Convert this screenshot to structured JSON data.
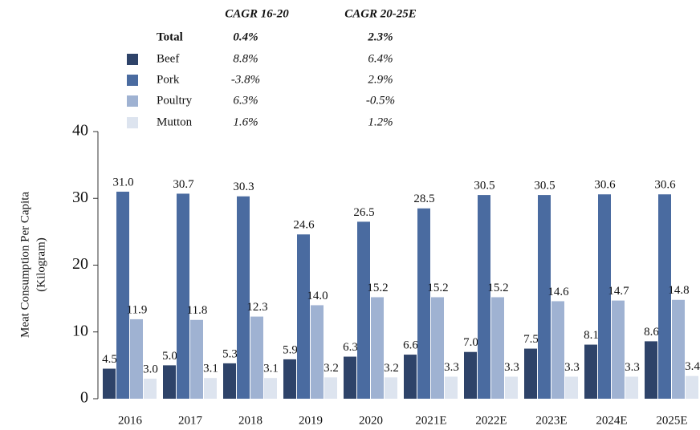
{
  "chart_data": {
    "type": "bar",
    "categories": [
      "2016",
      "2017",
      "2018",
      "2019",
      "2020",
      "2021E",
      "2022E",
      "2023E",
      "2024E",
      "2025E"
    ],
    "ylabel": [
      "Meat Consumption Per Capita",
      "(Kilogram)"
    ],
    "ylim": [
      0,
      40
    ],
    "yticks": [
      0,
      10,
      20,
      30,
      40
    ],
    "cagr_headers": [
      "CAGR 16-20",
      "CAGR 20-25E"
    ],
    "total": {
      "name": "Total",
      "cagr": [
        "0.4%",
        "2.3%"
      ]
    },
    "series": [
      {
        "name": "Beef",
        "color": "#2e4369",
        "cagr": [
          "8.8%",
          "6.4%"
        ],
        "values": [
          4.5,
          5.0,
          5.3,
          5.9,
          6.3,
          6.6,
          7.0,
          7.5,
          8.1,
          8.6
        ],
        "value_labels": [
          "4.5",
          "5.0",
          "5.3",
          "5.9",
          "6.3",
          "6.6",
          "7.0",
          "7.5",
          "8.1",
          "8.6"
        ]
      },
      {
        "name": "Pork",
        "color": "#4a6ba0",
        "cagr": [
          "-3.8%",
          "2.9%"
        ],
        "values": [
          31.0,
          30.7,
          30.3,
          24.6,
          26.5,
          28.5,
          30.5,
          30.5,
          30.6,
          30.6
        ],
        "value_labels": [
          "31.0",
          "30.7",
          "30.3",
          "24.6",
          "26.5",
          "28.5",
          "30.5",
          "30.5",
          "30.6",
          "30.6"
        ]
      },
      {
        "name": "Poultry",
        "color": "#9fb2d2",
        "cagr": [
          "6.3%",
          "-0.5%"
        ],
        "values": [
          11.9,
          11.8,
          12.3,
          14.0,
          15.2,
          15.2,
          15.2,
          14.6,
          14.7,
          14.8
        ],
        "value_labels": [
          "11.9",
          "11.8",
          "12.3",
          "14.0",
          "15.2",
          "15.2",
          "15.2",
          "14.6",
          "14.7",
          "14.8"
        ]
      },
      {
        "name": "Mutton",
        "color": "#dde4ef",
        "cagr": [
          "1.6%",
          "1.2%"
        ],
        "values": [
          3.0,
          3.1,
          3.1,
          3.2,
          3.2,
          3.3,
          3.3,
          3.3,
          3.3,
          3.4
        ],
        "value_labels": [
          "3.0",
          "3.1",
          "3.1",
          "3.2",
          "3.2",
          "3.3",
          "3.3",
          "3.3",
          "3.3",
          "3.4"
        ]
      }
    ]
  }
}
